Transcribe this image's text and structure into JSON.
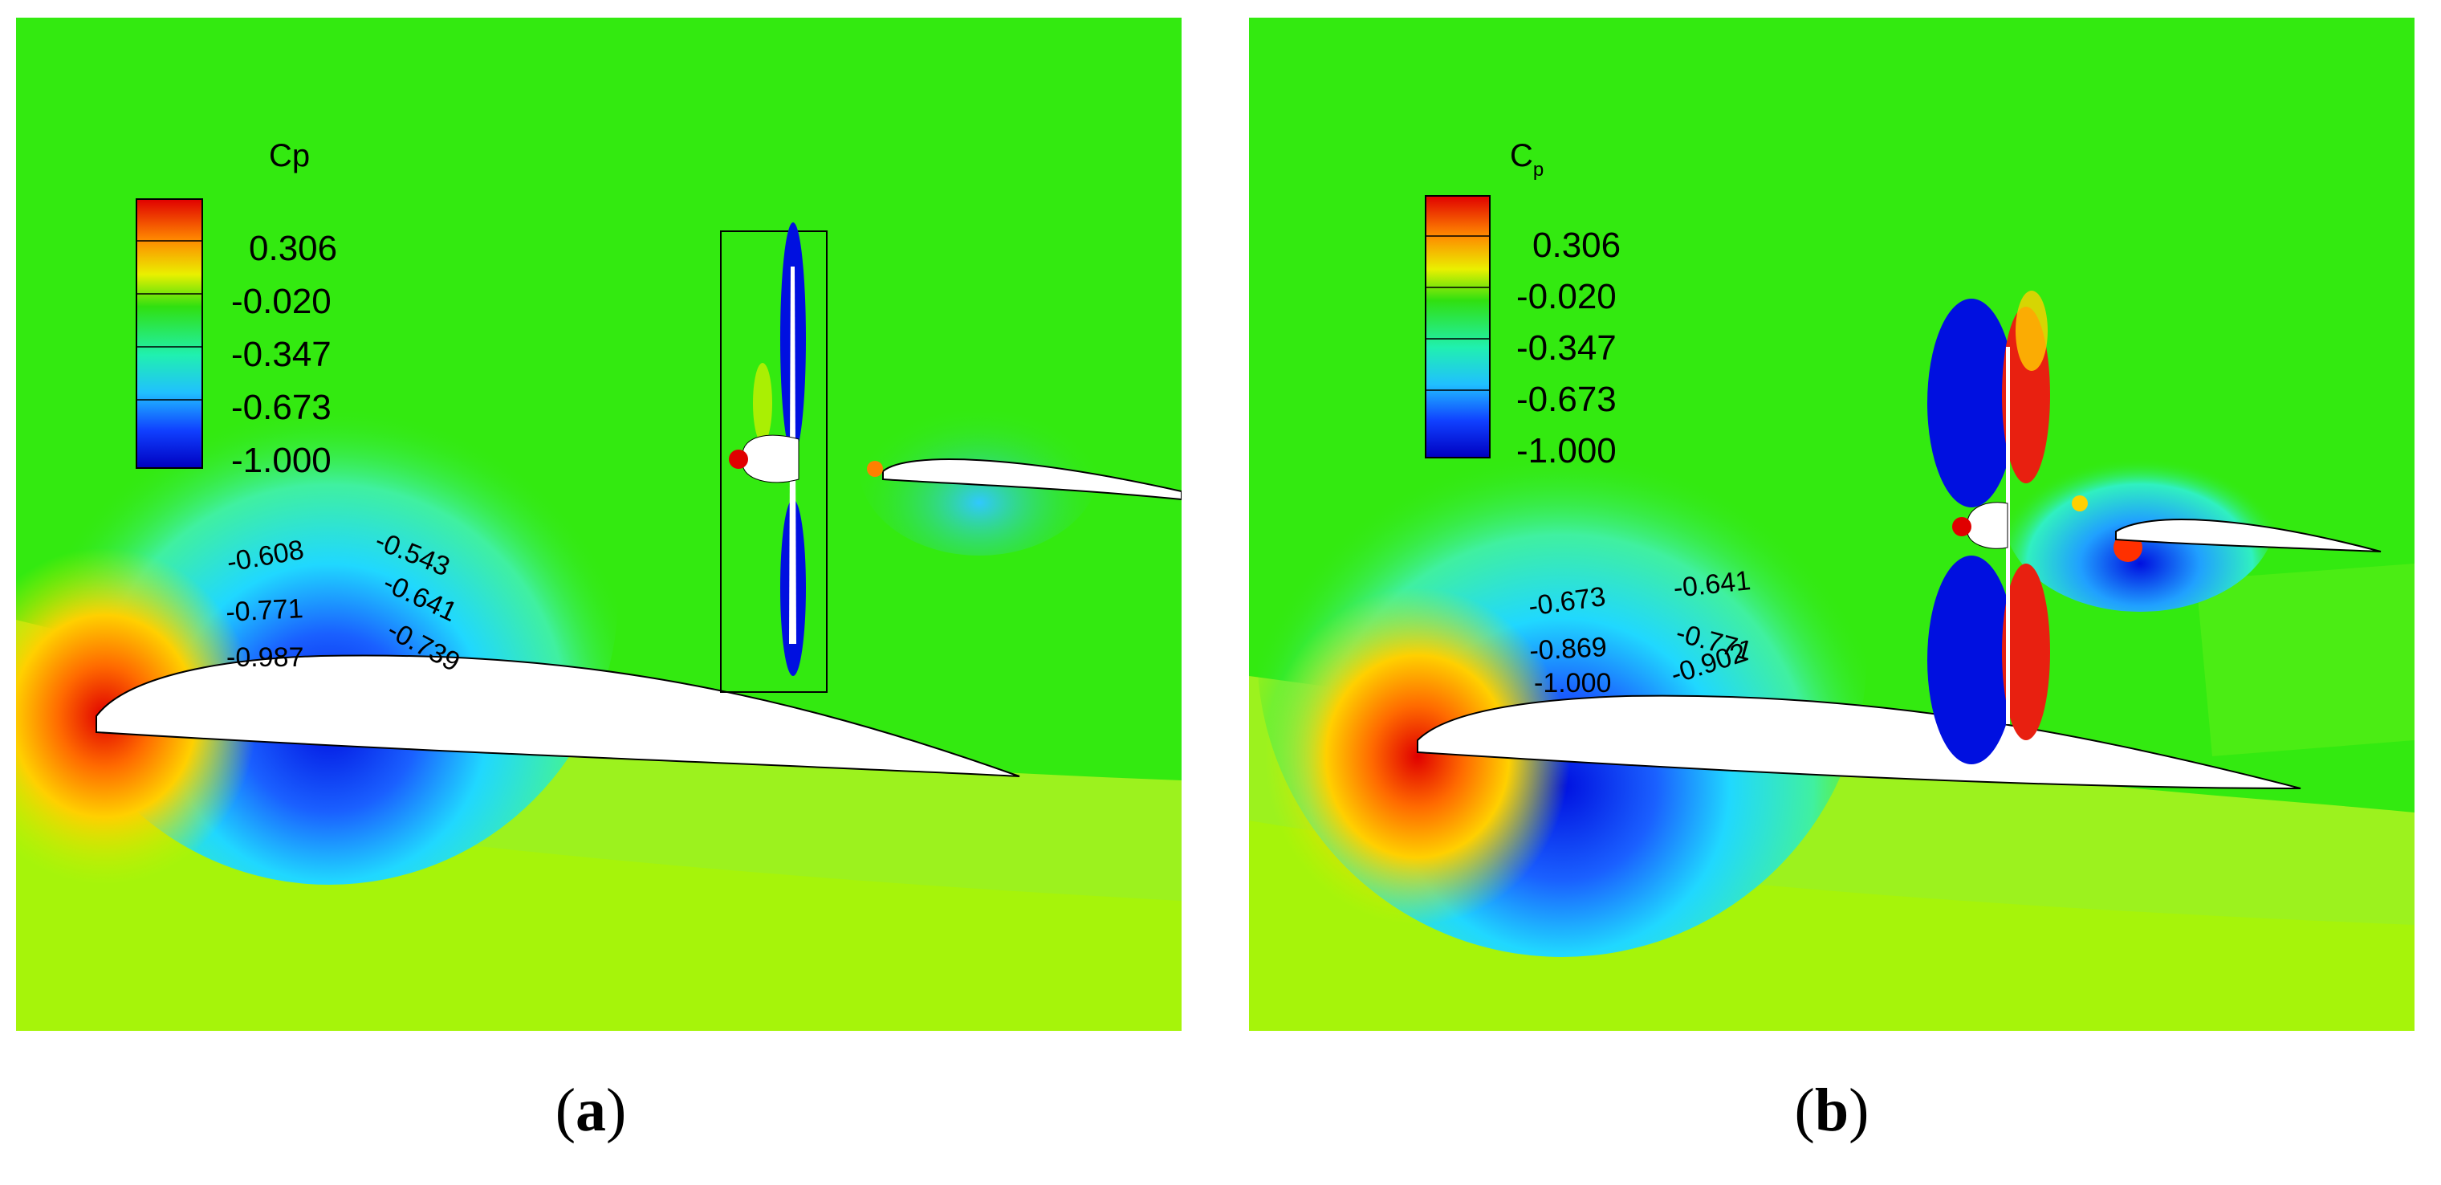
{
  "panels": [
    {
      "id": "a",
      "caption_letter": "a",
      "legend": {
        "title_main": "Cp",
        "title_sub": "",
        "levels": [
          "0.306",
          "-0.020",
          "-0.347",
          "-0.673",
          "-1.000"
        ]
      },
      "contour_labels": [
        "-0.608",
        "-0.543",
        "-0.771",
        "-0.641",
        "-0.987",
        "-0.739"
      ]
    },
    {
      "id": "b",
      "caption_letter": "b",
      "legend": {
        "title_main": "C",
        "title_sub": "p",
        "levels": [
          "0.306",
          "-0.020",
          "-0.347",
          "-0.673",
          "-1.000"
        ]
      },
      "contour_labels": [
        "-0.673",
        "-0.641",
        "-0.869",
        "-0.771",
        "-1.000",
        "-0.902"
      ]
    }
  ],
  "colors": {
    "freestream_green": "#33ea10",
    "lower_yellowgreen": "#9cf21e",
    "suction_cyan": "#22e8e0",
    "suction_blue": "#0a1ee8",
    "stagnation_red": "#e81010",
    "airfoil_white": "#ffffff"
  }
}
